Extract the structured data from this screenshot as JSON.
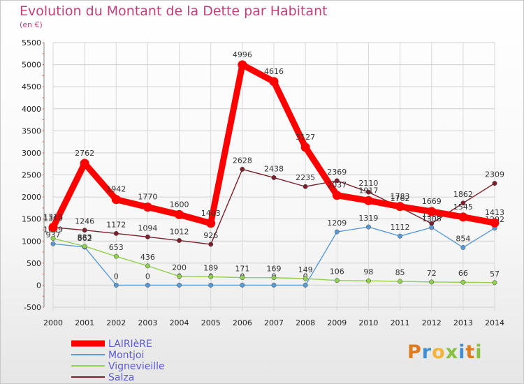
{
  "chart_data": {
    "type": "line",
    "title": "Evolution du Montant de la Dette par Habitant",
    "subtitle": "(en €)",
    "xlabel": "",
    "ylabel": "",
    "ylim": [
      -500,
      5500
    ],
    "y_ticks": [
      -500,
      0,
      500,
      1000,
      1500,
      2000,
      2500,
      3000,
      3500,
      4000,
      4500,
      5000,
      5500
    ],
    "grid": true,
    "legend_position": "bottom-left",
    "x": [
      "2000",
      "2001",
      "2002",
      "2003",
      "2004",
      "2005",
      "2006",
      "2007",
      "2008",
      "2009",
      "2010",
      "2011",
      "2012",
      "2013",
      "2014"
    ],
    "series": [
      {
        "name": "Salza",
        "color": "#7a1f2b",
        "values": [
          1309,
          1246,
          1172,
          1094,
          1012,
          926,
          2628,
          2438,
          2235,
          2369,
          2110,
          1762,
          1398,
          1862,
          2309
        ]
      },
      {
        "name": "Montjoi",
        "color": "#5b9bd5",
        "values": [
          937,
          862,
          0,
          0,
          0,
          0,
          0,
          0,
          0,
          1209,
          1319,
          1112,
          1308,
          854,
          1292
        ]
      },
      {
        "name": "Vignevieille",
        "color": "#92d050",
        "values": [
          1059,
          883,
          653,
          436,
          200,
          189,
          171,
          169,
          149,
          106,
          98,
          85,
          72,
          66,
          57
        ]
      },
      {
        "name": "LAIRIèRE",
        "color": "#ff0000",
        "values": [
          1310,
          2762,
          1942,
          1770,
          1600,
          1403,
          4996,
          4616,
          3127,
          2037,
          1917,
          1783,
          1669,
          1545,
          1413
        ]
      }
    ]
  },
  "logo": {
    "text": "Proxiti",
    "colors": [
      "#e07b1e",
      "#3f8fd2",
      "#f2b43a",
      "#86c240",
      "#3f8fd2",
      "#e07b1e",
      "#86c240"
    ]
  }
}
